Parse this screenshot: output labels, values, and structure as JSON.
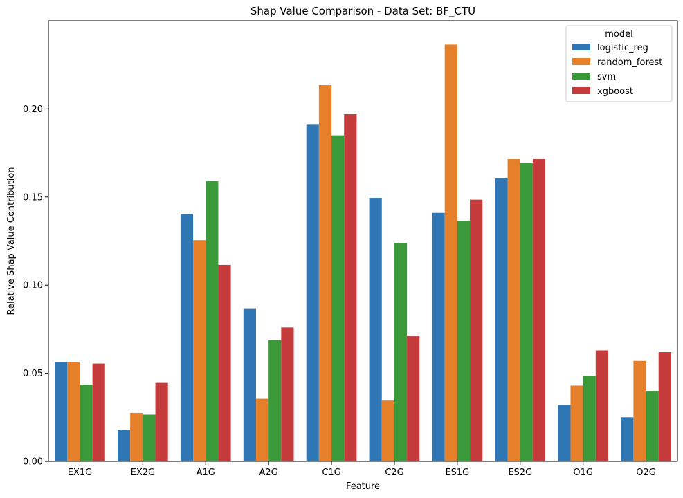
{
  "chart_data": {
    "type": "bar",
    "title": "Shap Value Comparison - Data Set: BF_CTU",
    "xlabel": "Feature",
    "ylabel": "Relative Shap Value Contribution",
    "ylim": [
      0,
      0.25
    ],
    "yticks": [
      "0.00",
      "0.05",
      "0.10",
      "0.15",
      "0.20"
    ],
    "categories": [
      "EX1G",
      "EX2G",
      "A1G",
      "A2G",
      "C1G",
      "C2G",
      "ES1G",
      "ES2G",
      "O1G",
      "O2G"
    ],
    "legend_title": "model",
    "legend_position": "top-right",
    "grid": false,
    "series": [
      {
        "name": "logistic_reg",
        "color": "#2f77b4",
        "values": [
          0.0565,
          0.018,
          0.1405,
          0.0865,
          0.191,
          0.1495,
          0.141,
          0.1605,
          0.032,
          0.025
        ]
      },
      {
        "name": "random_forest",
        "color": "#e6802b",
        "values": [
          0.0565,
          0.0275,
          0.1255,
          0.0355,
          0.2135,
          0.0345,
          0.2365,
          0.1715,
          0.043,
          0.057
        ]
      },
      {
        "name": "svm",
        "color": "#3a9a3a",
        "values": [
          0.0435,
          0.0265,
          0.159,
          0.069,
          0.185,
          0.124,
          0.1365,
          0.1695,
          0.0485,
          0.04
        ]
      },
      {
        "name": "xgboost",
        "color": "#c53b3c",
        "values": [
          0.0555,
          0.0445,
          0.1115,
          0.076,
          0.197,
          0.071,
          0.1485,
          0.1715,
          0.063,
          0.062
        ]
      }
    ]
  }
}
